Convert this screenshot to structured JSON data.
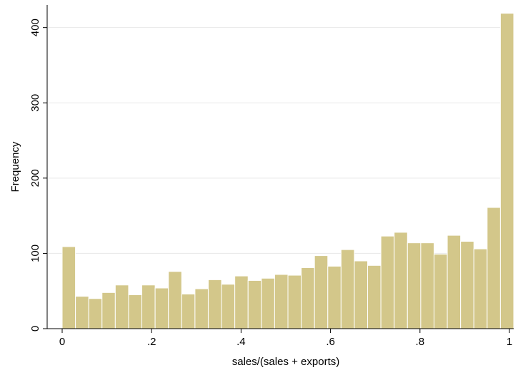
{
  "chart_data": {
    "type": "bar",
    "subtype": "histogram",
    "xlabel": "sales/(sales + exports)",
    "ylabel": "Frequency",
    "xlim": [
      0,
      1
    ],
    "ylim": [
      0,
      430
    ],
    "x_ticks": [
      0,
      0.2,
      0.4,
      0.6,
      0.8,
      1
    ],
    "x_tick_labels": [
      "0",
      ".2",
      ".4",
      ".6",
      ".8",
      "1"
    ],
    "y_ticks": [
      0,
      100,
      200,
      300,
      400
    ],
    "y_tick_labels": [
      "0",
      "100",
      "200",
      "300",
      "400"
    ],
    "grid": "horizontal",
    "bar_color": "#d3c78a",
    "bar_edge_color": "#ffffff",
    "bin_width": 0.0333,
    "bins": [
      {
        "x0": 0.0,
        "x1": 0.0333,
        "value": 109
      },
      {
        "x0": 0.0333,
        "x1": 0.0667,
        "value": 43
      },
      {
        "x0": 0.0667,
        "x1": 0.1,
        "value": 40
      },
      {
        "x0": 0.1,
        "x1": 0.1333,
        "value": 48
      },
      {
        "x0": 0.1333,
        "x1": 0.1667,
        "value": 58
      },
      {
        "x0": 0.1667,
        "x1": 0.2,
        "value": 45
      },
      {
        "x0": 0.2,
        "x1": 0.2333,
        "value": 58
      },
      {
        "x0": 0.2333,
        "x1": 0.2667,
        "value": 54
      },
      {
        "x0": 0.2667,
        "x1": 0.3,
        "value": 76
      },
      {
        "x0": 0.3,
        "x1": 0.3333,
        "value": 46
      },
      {
        "x0": 0.3333,
        "x1": 0.3667,
        "value": 53
      },
      {
        "x0": 0.3667,
        "x1": 0.4,
        "value": 65
      },
      {
        "x0": 0.4,
        "x1": 0.4333,
        "value": 59
      },
      {
        "x0": 0.4333,
        "x1": 0.4667,
        "value": 70
      },
      {
        "x0": 0.4667,
        "x1": 0.5,
        "value": 64
      },
      {
        "x0": 0.5,
        "x1": 0.5333,
        "value": 67
      },
      {
        "x0": 0.5333,
        "x1": 0.5667,
        "value": 72
      },
      {
        "x0": 0.5667,
        "x1": 0.6,
        "value": 71
      },
      {
        "x0": 0.6,
        "x1": 0.6333,
        "value": 81
      },
      {
        "x0": 0.6333,
        "x1": 0.6667,
        "value": 97
      },
      {
        "x0": 0.6667,
        "x1": 0.7,
        "value": 83
      },
      {
        "x0": 0.7,
        "x1": 0.7333,
        "value": 105
      },
      {
        "x0": 0.7333,
        "x1": 0.7667,
        "value": 90
      },
      {
        "x0": 0.7667,
        "x1": 0.8,
        "value": 84
      },
      {
        "x0": 0.8,
        "x1": 0.8333,
        "value": 123
      },
      {
        "x0": 0.8333,
        "x1": 0.8667,
        "value": 128
      },
      {
        "x0": 0.8667,
        "x1": 0.9,
        "value": 114
      },
      {
        "x0": 0.9,
        "x1": 0.9333,
        "value": 114
      },
      {
        "x0": 0.9333,
        "x1": 0.9667,
        "value": 99
      },
      {
        "x0": 0.9667,
        "x1": 1.0,
        "value": 124
      },
      {
        "x0": 1.0,
        "x1": 1.0333,
        "value": 116
      },
      {
        "x0": 1.0333,
        "x1": 1.0667,
        "value": 106
      },
      {
        "x0": 1.0667,
        "x1": 1.1,
        "value": 161
      },
      {
        "x0": 1.1,
        "x1": 1.1333,
        "value": 419
      }
    ]
  }
}
